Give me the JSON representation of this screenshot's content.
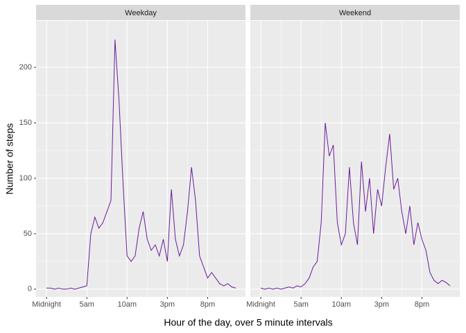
{
  "chart_data": {
    "type": "line",
    "x_label": "Hour of the day, over 5 minute intervals",
    "y_label": "Number of steps",
    "color": "#6a1b9a",
    "grid": true,
    "xlim": [
      -1.3,
      24.7
    ],
    "xticks": [
      {
        "value": 0,
        "label": "Midnight"
      },
      {
        "value": 5,
        "label": "5am"
      },
      {
        "value": 10,
        "label": "10am"
      },
      {
        "value": 15,
        "label": "3pm"
      },
      {
        "value": 20,
        "label": "8pm"
      }
    ],
    "ylim": [
      -7,
      242
    ],
    "yticks": [
      0,
      50,
      100,
      150,
      200
    ],
    "x": [
      0,
      0.5,
      1,
      1.5,
      2,
      2.5,
      3,
      3.5,
      4,
      4.5,
      5,
      5.5,
      6,
      6.5,
      7,
      7.5,
      8,
      8.5,
      9,
      9.5,
      10,
      10.5,
      11,
      11.5,
      12,
      12.5,
      13,
      13.5,
      14,
      14.5,
      15,
      15.5,
      16,
      16.5,
      17,
      17.5,
      18,
      18.5,
      19,
      19.5,
      20,
      20.5,
      21,
      21.5,
      22,
      22.5,
      23,
      23.5
    ],
    "panels": [
      {
        "title": "Weekday",
        "values": [
          1,
          1,
          0,
          1,
          0,
          0,
          1,
          0,
          1,
          2,
          3,
          50,
          65,
          55,
          60,
          70,
          80,
          225,
          170,
          95,
          30,
          25,
          30,
          55,
          70,
          45,
          35,
          40,
          30,
          45,
          25,
          90,
          45,
          30,
          40,
          70,
          110,
          80,
          30,
          20,
          10,
          15,
          10,
          5,
          3,
          5,
          2,
          1
        ]
      },
      {
        "title": "Weekend",
        "values": [
          1,
          0,
          1,
          0,
          1,
          0,
          1,
          2,
          1,
          3,
          2,
          5,
          10,
          20,
          25,
          60,
          150,
          120,
          130,
          60,
          40,
          50,
          110,
          60,
          40,
          115,
          70,
          100,
          50,
          90,
          75,
          110,
          140,
          90,
          100,
          70,
          50,
          75,
          40,
          60,
          45,
          35,
          15,
          8,
          5,
          8,
          6,
          3
        ]
      }
    ]
  }
}
